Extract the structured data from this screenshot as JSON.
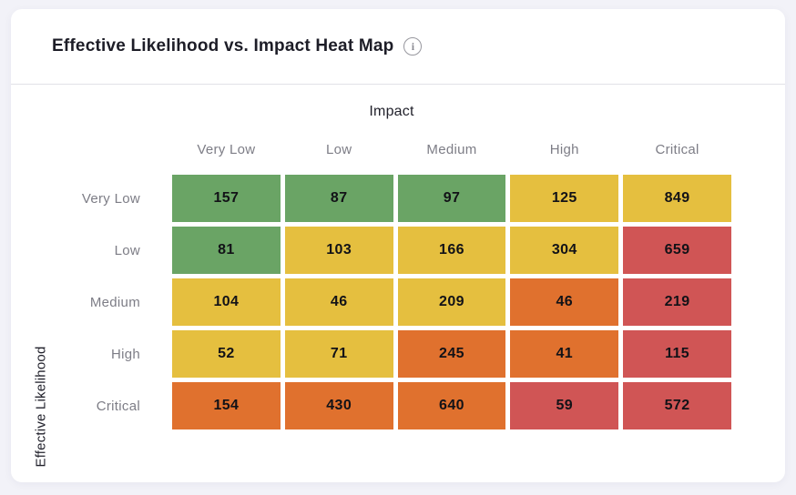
{
  "header": {
    "title": "Effective Likelihood vs. Impact Heat Map",
    "info_glyph": "i"
  },
  "chart_data": {
    "type": "heatmap",
    "title": "Effective Likelihood vs. Impact Heat Map",
    "xlabel": "Impact",
    "ylabel": "Effective Likelihood",
    "columns": [
      "Very Low",
      "Low",
      "Medium",
      "High",
      "Critical"
    ],
    "rows": [
      "Very Low",
      "Low",
      "Medium",
      "High",
      "Critical"
    ],
    "values": [
      [
        157,
        87,
        97,
        125,
        849
      ],
      [
        81,
        103,
        166,
        304,
        659
      ],
      [
        104,
        46,
        209,
        46,
        219
      ],
      [
        52,
        71,
        245,
        41,
        115
      ],
      [
        154,
        430,
        640,
        59,
        572
      ]
    ],
    "cell_colors": [
      [
        "green",
        "green",
        "green",
        "yellow",
        "yellow"
      ],
      [
        "green",
        "yellow",
        "yellow",
        "yellow",
        "red"
      ],
      [
        "yellow",
        "yellow",
        "yellow",
        "orange",
        "red"
      ],
      [
        "yellow",
        "yellow",
        "orange",
        "orange",
        "red"
      ],
      [
        "orange",
        "orange",
        "orange",
        "red",
        "red"
      ]
    ],
    "palette": {
      "green": "#6aa465",
      "yellow": "#e5bf3f",
      "orange": "#e0712e",
      "red": "#d05555"
    },
    "legend_position": "none",
    "grid": false,
    "gap_color": "#ffffff"
  }
}
